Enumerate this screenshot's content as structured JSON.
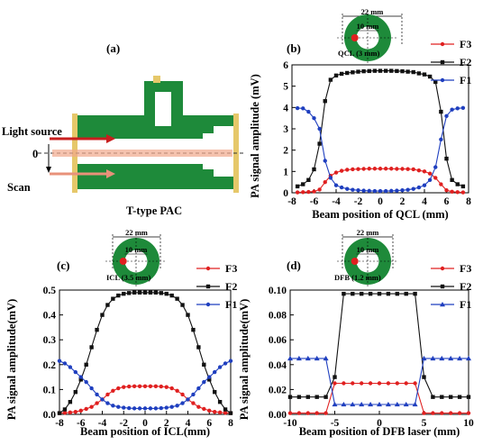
{
  "panel_a": {
    "label": "(a)",
    "light_source": "Light source",
    "scan": "Scan",
    "zero": "0",
    "caption": "T-type PAC"
  },
  "insets": [
    {
      "panel": "b",
      "outer": "22 mm",
      "inner": "10 mm",
      "beam": "QCL (3 mm)"
    },
    {
      "panel": "c",
      "outer": "22 mm",
      "inner": "10 mm",
      "beam": "ICL (3.5 mm)"
    },
    {
      "panel": "d",
      "outer": "22 mm",
      "inner": "10 mm",
      "beam": "DFB (1.2 mm)"
    }
  ],
  "colors": {
    "F1": "#1f3fbf",
    "F2": "#111111",
    "F3": "#e02020",
    "green": "#1e8a3a",
    "flange": "#e6c86a"
  },
  "chart_data": [
    {
      "panel": "(b)",
      "type": "line",
      "xlabel": "Beam position of QCL (mm)",
      "ylabel": "PA signal amplitude (mV)",
      "xlim": [
        -8,
        8
      ],
      "ylim": [
        0,
        6
      ],
      "xticks": [
        "-8",
        "-6",
        "-4",
        "-2",
        "0",
        "2",
        "4",
        "6",
        "8"
      ],
      "yticks": [
        "0",
        "1",
        "2",
        "3",
        "4",
        "5",
        "6"
      ],
      "legend_position": "top-right",
      "series": [
        {
          "name": "F3",
          "color": "#e02020",
          "marker": "circle",
          "x": [
            -7.5,
            -7,
            -6.5,
            -6,
            -5.5,
            -5,
            -4.5,
            -4,
            -3.5,
            -3,
            -2.5,
            -2,
            -1.5,
            -1,
            -0.5,
            0,
            0.5,
            1,
            1.5,
            2,
            2.5,
            3,
            3.5,
            4,
            4.5,
            5,
            5.5,
            6,
            6.5,
            7,
            7.5
          ],
          "y": [
            0.02,
            0.03,
            0.04,
            0.06,
            0.15,
            0.5,
            0.8,
            0.95,
            1.03,
            1.08,
            1.1,
            1.11,
            1.12,
            1.13,
            1.13,
            1.13,
            1.13,
            1.13,
            1.12,
            1.12,
            1.11,
            1.1,
            1.05,
            1.0,
            0.9,
            0.7,
            0.4,
            0.12,
            0.05,
            0.03,
            0.02
          ]
        },
        {
          "name": "F2",
          "color": "#111111",
          "marker": "square",
          "x": [
            -7.5,
            -7,
            -6.5,
            -6,
            -5.5,
            -5,
            -4.5,
            -4,
            -3.5,
            -3,
            -2.5,
            -2,
            -1.5,
            -1,
            -0.5,
            0,
            0.5,
            1,
            1.5,
            2,
            2.5,
            3,
            3.5,
            4,
            4.5,
            5,
            5.5,
            6,
            6.5,
            7,
            7.5
          ],
          "y": [
            0.3,
            0.4,
            0.6,
            1.1,
            2.3,
            4.3,
            5.3,
            5.5,
            5.58,
            5.62,
            5.65,
            5.68,
            5.7,
            5.71,
            5.72,
            5.72,
            5.72,
            5.72,
            5.71,
            5.7,
            5.68,
            5.66,
            5.6,
            5.55,
            5.45,
            5.2,
            3.8,
            1.6,
            0.6,
            0.4,
            0.3
          ]
        },
        {
          "name": "F1",
          "color": "#1f3fbf",
          "marker": "circle",
          "x": [
            -7.5,
            -7,
            -6.5,
            -6,
            -5.5,
            -5,
            -4.5,
            -4,
            -3.5,
            -3,
            -2.5,
            -2,
            -1.5,
            -1,
            -0.5,
            0,
            0.5,
            1,
            1.5,
            2,
            2.5,
            3,
            3.5,
            4,
            4.5,
            5,
            5.5,
            6,
            6.5,
            7,
            7.5
          ],
          "y": [
            3.97,
            3.96,
            3.8,
            3.5,
            3.0,
            1.5,
            0.7,
            0.35,
            0.25,
            0.18,
            0.14,
            0.12,
            0.1,
            0.09,
            0.08,
            0.08,
            0.08,
            0.09,
            0.1,
            0.12,
            0.14,
            0.18,
            0.25,
            0.35,
            0.6,
            1.2,
            2.5,
            3.6,
            3.9,
            3.96,
            3.98
          ]
        }
      ]
    },
    {
      "panel": "(c)",
      "type": "line",
      "xlabel": "Beam position of ICL(mm)",
      "ylabel": "PA signal amplitude(mV)",
      "xlim": [
        -8,
        8
      ],
      "ylim": [
        0,
        0.5
      ],
      "xticks": [
        "-8",
        "-6",
        "-4",
        "-2",
        "0",
        "2",
        "4",
        "6",
        "8"
      ],
      "yticks": [
        "0.0",
        "0.1",
        "0.2",
        "0.3",
        "0.4",
        "0.5"
      ],
      "legend_position": "top-right",
      "series": [
        {
          "name": "F3",
          "color": "#e02020",
          "marker": "circle",
          "x": [
            -8,
            -7.5,
            -7,
            -6.5,
            -6,
            -5.5,
            -5,
            -4.5,
            -4,
            -3.5,
            -3,
            -2.5,
            -2,
            -1.5,
            -1,
            -0.5,
            0,
            0.5,
            1,
            1.5,
            2,
            2.5,
            3,
            3.5,
            4,
            4.5,
            5,
            5.5,
            6,
            6.5,
            7,
            7.5,
            8
          ],
          "y": [
            0.005,
            0.006,
            0.008,
            0.01,
            0.015,
            0.022,
            0.03,
            0.045,
            0.06,
            0.08,
            0.095,
            0.105,
            0.11,
            0.112,
            0.113,
            0.113,
            0.113,
            0.113,
            0.113,
            0.112,
            0.11,
            0.105,
            0.095,
            0.08,
            0.06,
            0.045,
            0.03,
            0.022,
            0.015,
            0.01,
            0.008,
            0.006,
            0.005
          ]
        },
        {
          "name": "F2",
          "color": "#111111",
          "marker": "square",
          "x": [
            -8,
            -7.5,
            -7,
            -6.5,
            -6,
            -5.5,
            -5,
            -4.5,
            -4,
            -3.5,
            -3,
            -2.5,
            -2,
            -1.5,
            -1,
            -0.5,
            0,
            0.5,
            1,
            1.5,
            2,
            2.5,
            3,
            3.5,
            4,
            4.5,
            5,
            5.5,
            6,
            6.5,
            7,
            7.5,
            8
          ],
          "y": [
            0.005,
            0.02,
            0.05,
            0.09,
            0.14,
            0.2,
            0.27,
            0.34,
            0.4,
            0.44,
            0.465,
            0.478,
            0.485,
            0.488,
            0.49,
            0.49,
            0.49,
            0.49,
            0.49,
            0.488,
            0.485,
            0.478,
            0.465,
            0.44,
            0.4,
            0.34,
            0.27,
            0.2,
            0.14,
            0.09,
            0.05,
            0.02,
            0.005
          ]
        },
        {
          "name": "F1",
          "color": "#1f3fbf",
          "marker": "circle",
          "x": [
            -8,
            -7.5,
            -7,
            -6.5,
            -6,
            -5.5,
            -5,
            -4.5,
            -4,
            -3.5,
            -3,
            -2.5,
            -2,
            -1.5,
            -1,
            -0.5,
            0,
            0.5,
            1,
            1.5,
            2,
            2.5,
            3,
            3.5,
            4,
            4.5,
            5,
            5.5,
            6,
            6.5,
            7,
            7.5,
            8
          ],
          "y": [
            0.215,
            0.205,
            0.19,
            0.17,
            0.15,
            0.13,
            0.105,
            0.08,
            0.06,
            0.045,
            0.035,
            0.03,
            0.027,
            0.025,
            0.024,
            0.024,
            0.024,
            0.024,
            0.024,
            0.025,
            0.027,
            0.03,
            0.035,
            0.045,
            0.06,
            0.08,
            0.105,
            0.13,
            0.15,
            0.17,
            0.19,
            0.205,
            0.215
          ]
        }
      ]
    },
    {
      "panel": "(d)",
      "type": "line",
      "xlabel": "Beam position of DFB laser (mm)",
      "ylabel": "PA signal amplitude(mV)",
      "xlim": [
        -10,
        10
      ],
      "ylim": [
        0,
        0.1
      ],
      "xticks": [
        "-10",
        "-5",
        "0",
        "5",
        "10"
      ],
      "yticks": [
        "0.00",
        "0.02",
        "0.04",
        "0.06",
        "0.08",
        "0.10"
      ],
      "legend_position": "top-right",
      "series": [
        {
          "name": "F3",
          "color": "#e02020",
          "marker": "circle",
          "x": [
            -10,
            -9,
            -8,
            -7,
            -6,
            -5,
            -4,
            -3,
            -2,
            -1,
            0,
            1,
            2,
            3,
            4,
            5,
            6,
            7,
            8,
            9,
            10
          ],
          "y": [
            0.001,
            0.001,
            0.001,
            0.001,
            0.001,
            0.025,
            0.025,
            0.025,
            0.025,
            0.025,
            0.025,
            0.025,
            0.025,
            0.025,
            0.025,
            0.001,
            0.001,
            0.001,
            0.001,
            0.001,
            0.001
          ]
        },
        {
          "name": "F2",
          "color": "#111111",
          "marker": "square",
          "x": [
            -10,
            -9,
            -8,
            -7,
            -6,
            -5,
            -4,
            -3,
            -2,
            -1,
            0,
            1,
            2,
            3,
            4,
            5,
            6,
            7,
            8,
            9,
            10
          ],
          "y": [
            0.014,
            0.014,
            0.014,
            0.014,
            0.014,
            0.03,
            0.097,
            0.097,
            0.097,
            0.097,
            0.097,
            0.097,
            0.097,
            0.097,
            0.097,
            0.03,
            0.014,
            0.014,
            0.014,
            0.014,
            0.014
          ]
        },
        {
          "name": "F1",
          "color": "#1f3fbf",
          "marker": "triangle",
          "x": [
            -10,
            -9,
            -8,
            -7,
            -6,
            -5,
            -4,
            -3,
            -2,
            -1,
            0,
            1,
            2,
            3,
            4,
            5,
            6,
            7,
            8,
            9,
            10
          ],
          "y": [
            0.045,
            0.045,
            0.045,
            0.045,
            0.045,
            0.008,
            0.008,
            0.008,
            0.008,
            0.008,
            0.008,
            0.008,
            0.008,
            0.008,
            0.008,
            0.045,
            0.045,
            0.045,
            0.045,
            0.045,
            0.045
          ]
        }
      ]
    }
  ]
}
